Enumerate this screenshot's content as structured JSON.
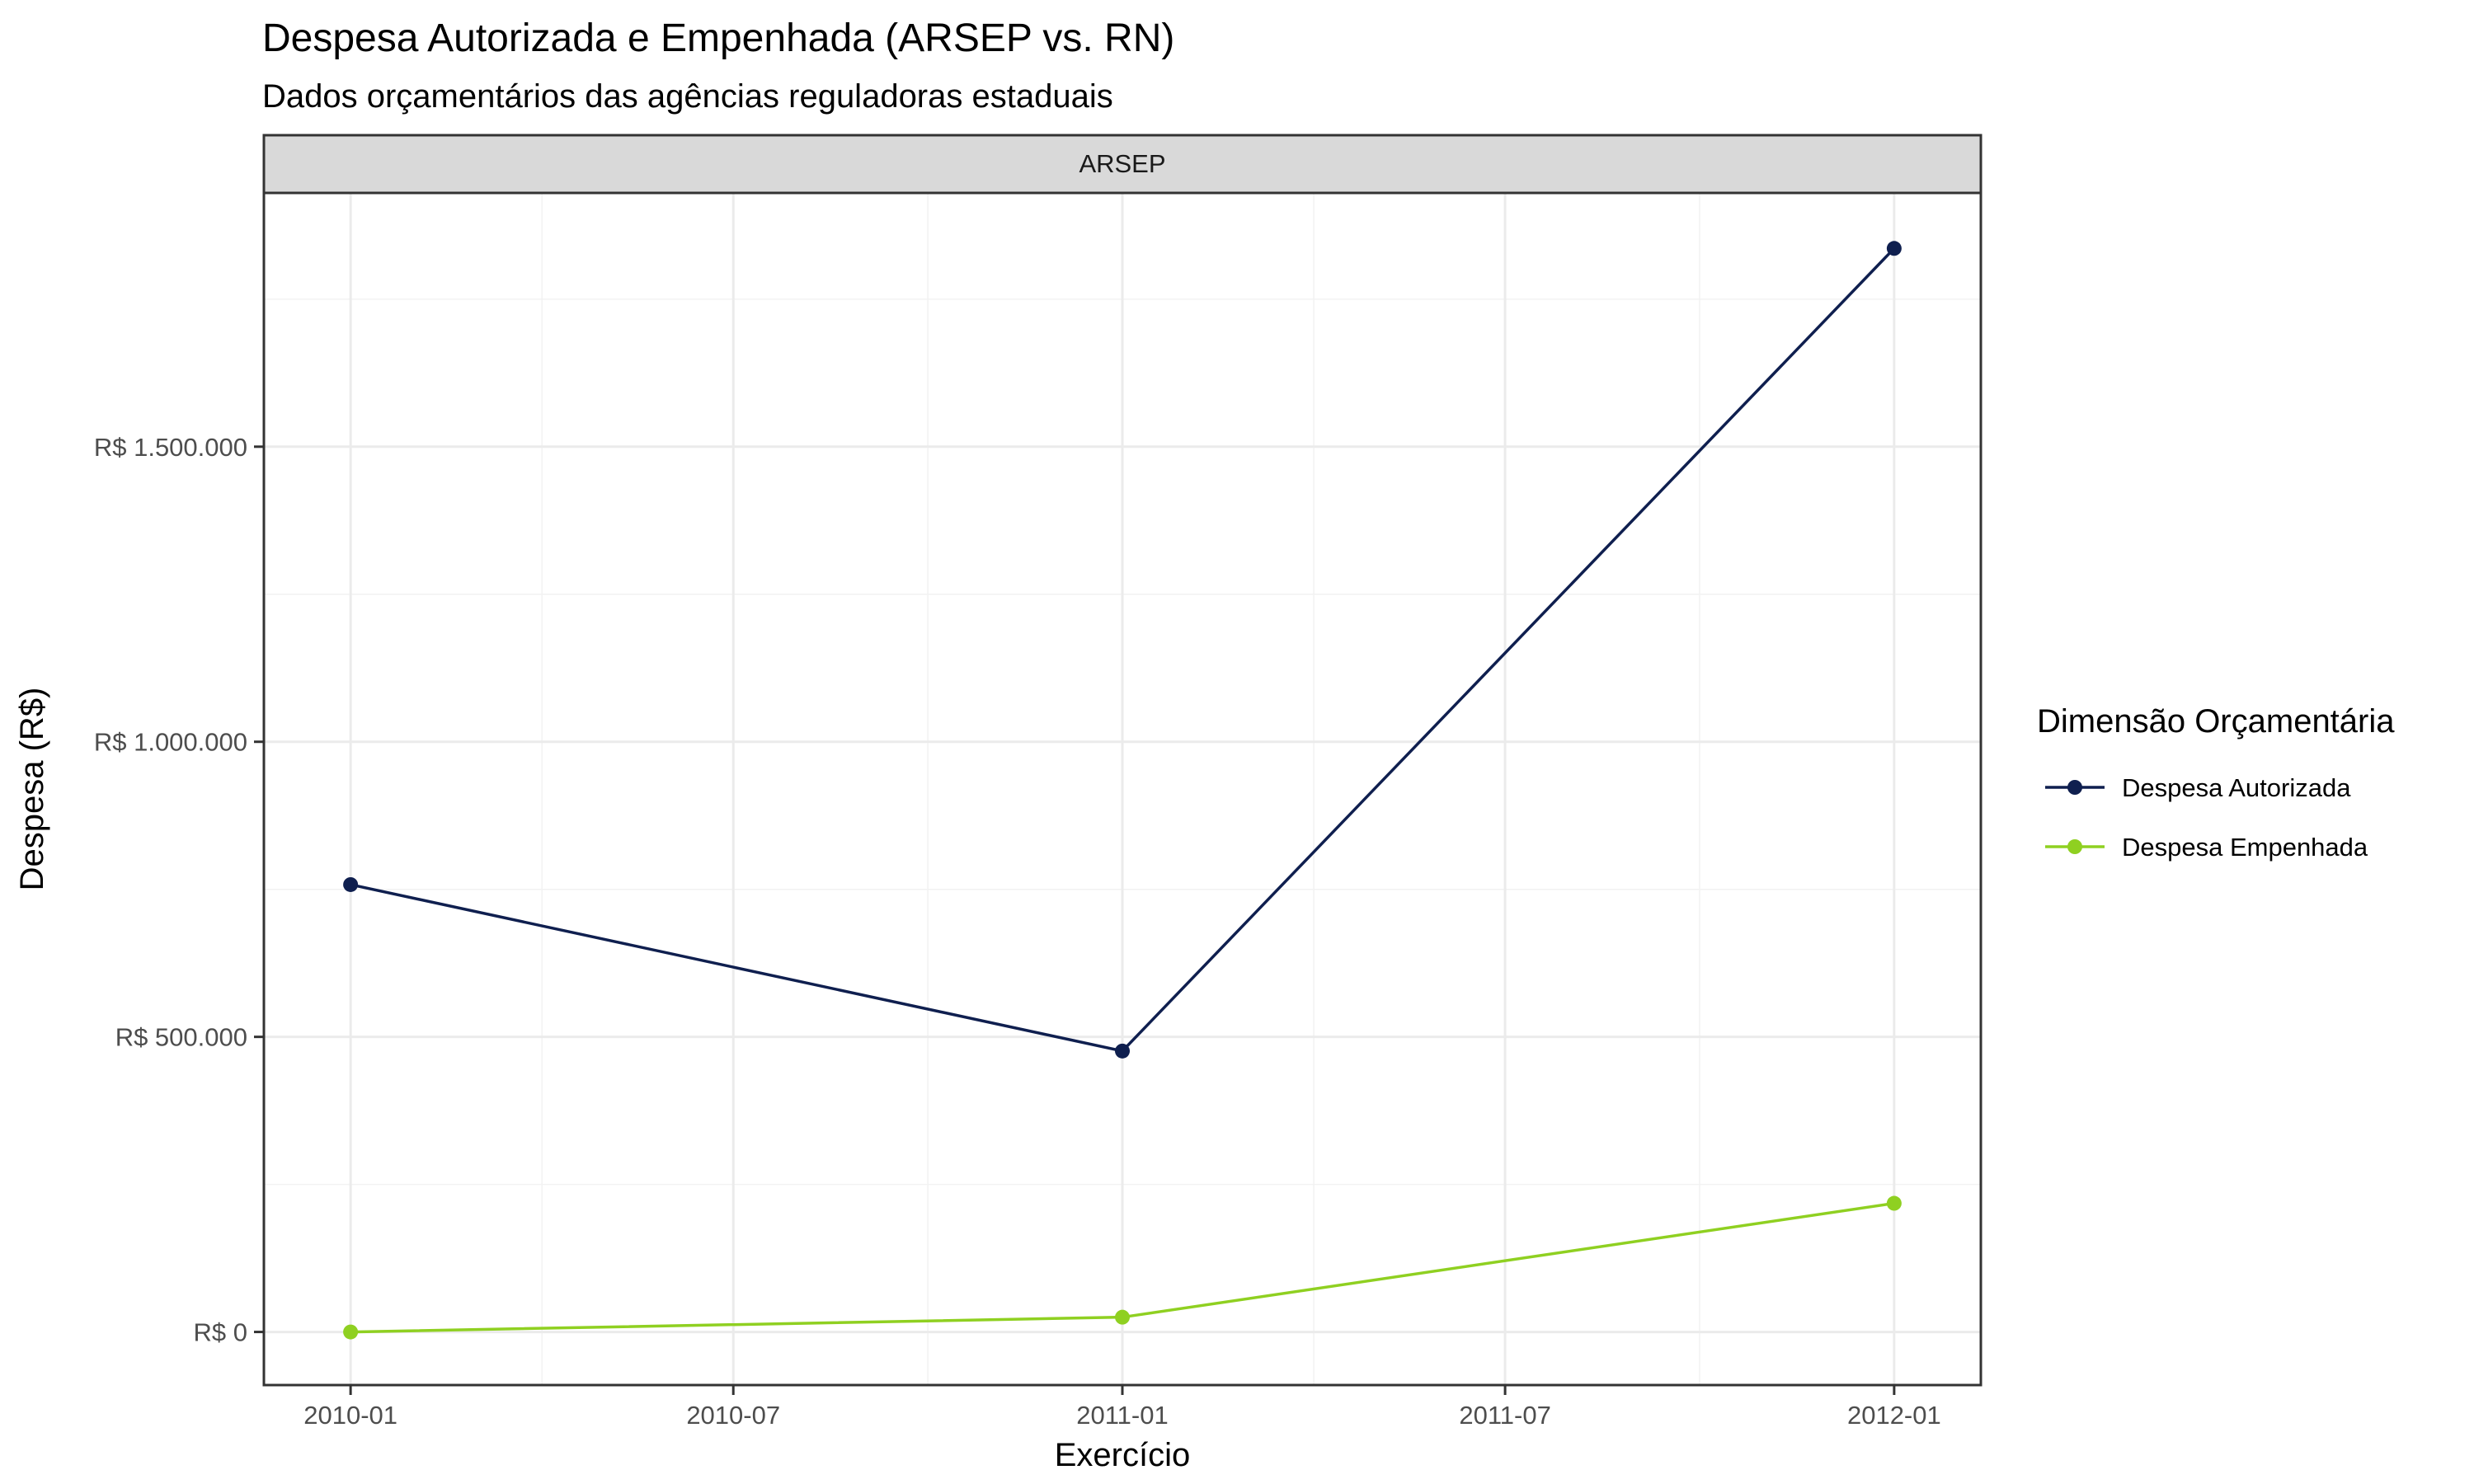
{
  "chart_data": {
    "type": "line",
    "title": "Despesa Autorizada e Empenhada (ARSEP vs. RN)",
    "subtitle": "Dados orçamentários das agências reguladoras estaduais",
    "facet": "ARSEP",
    "xlabel": "Exercício",
    "ylabel": "Despesa (R$)",
    "x": [
      "2010-01-01",
      "2011-01-01",
      "2012-01-01"
    ],
    "x_ticks": [
      "2010-01",
      "2010-07",
      "2011-01",
      "2011-07",
      "2012-01"
    ],
    "xlim": [
      "2009-11-21",
      "2012-02-11"
    ],
    "y_ticks": [
      0,
      500000,
      1000000,
      1500000
    ],
    "y_tick_labels": [
      "R$ 0",
      "R$ 500.000",
      "R$ 1.000.000",
      "R$ 1.500.000"
    ],
    "ylim": [
      -90000,
      1930000
    ],
    "grid": true,
    "legend_title": "Dimensão Orçamentária",
    "legend_position": "right",
    "series": [
      {
        "name": "Despesa Autorizada",
        "color": "#0f1f4f",
        "values": [
          758000,
          476000,
          1836000
        ]
      },
      {
        "name": "Despesa Empenhada",
        "color": "#8fd021",
        "values": [
          0,
          25000,
          218000
        ]
      }
    ]
  }
}
